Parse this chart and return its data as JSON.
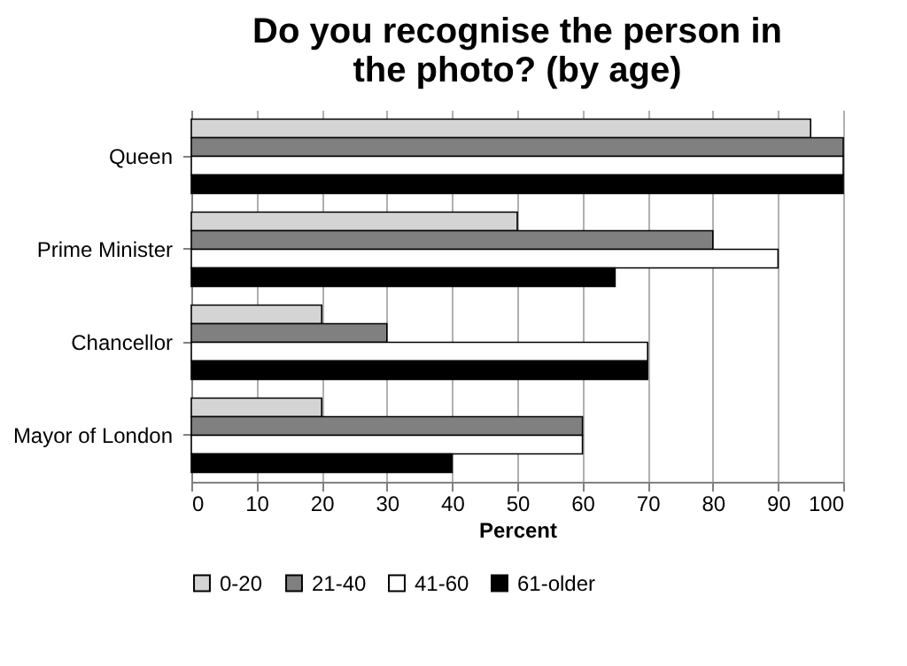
{
  "chart_data": {
    "type": "bar",
    "orientation": "horizontal",
    "title": "Do you recognise the person in the photo? (by age)",
    "xlabel": "Percent",
    "categories": [
      "Queen",
      "Prime Minister",
      "Chancellor",
      "Mayor of London"
    ],
    "series": [
      {
        "name": "0-20",
        "color": "#d4d4d4",
        "values": [
          95,
          50,
          20,
          20
        ]
      },
      {
        "name": "21-40",
        "color": "#808080",
        "values": [
          100,
          80,
          30,
          60
        ]
      },
      {
        "name": "41-60",
        "color": "#ffffff",
        "values": [
          100,
          90,
          70,
          60
        ]
      },
      {
        "name": "61-older",
        "color": "#000000",
        "values": [
          100,
          65,
          70,
          40
        ]
      }
    ],
    "xlim": [
      0,
      100
    ],
    "xticks": [
      0,
      10,
      20,
      30,
      40,
      50,
      60,
      70,
      80,
      90,
      100
    ],
    "grid": "x",
    "legend": "bottom"
  }
}
